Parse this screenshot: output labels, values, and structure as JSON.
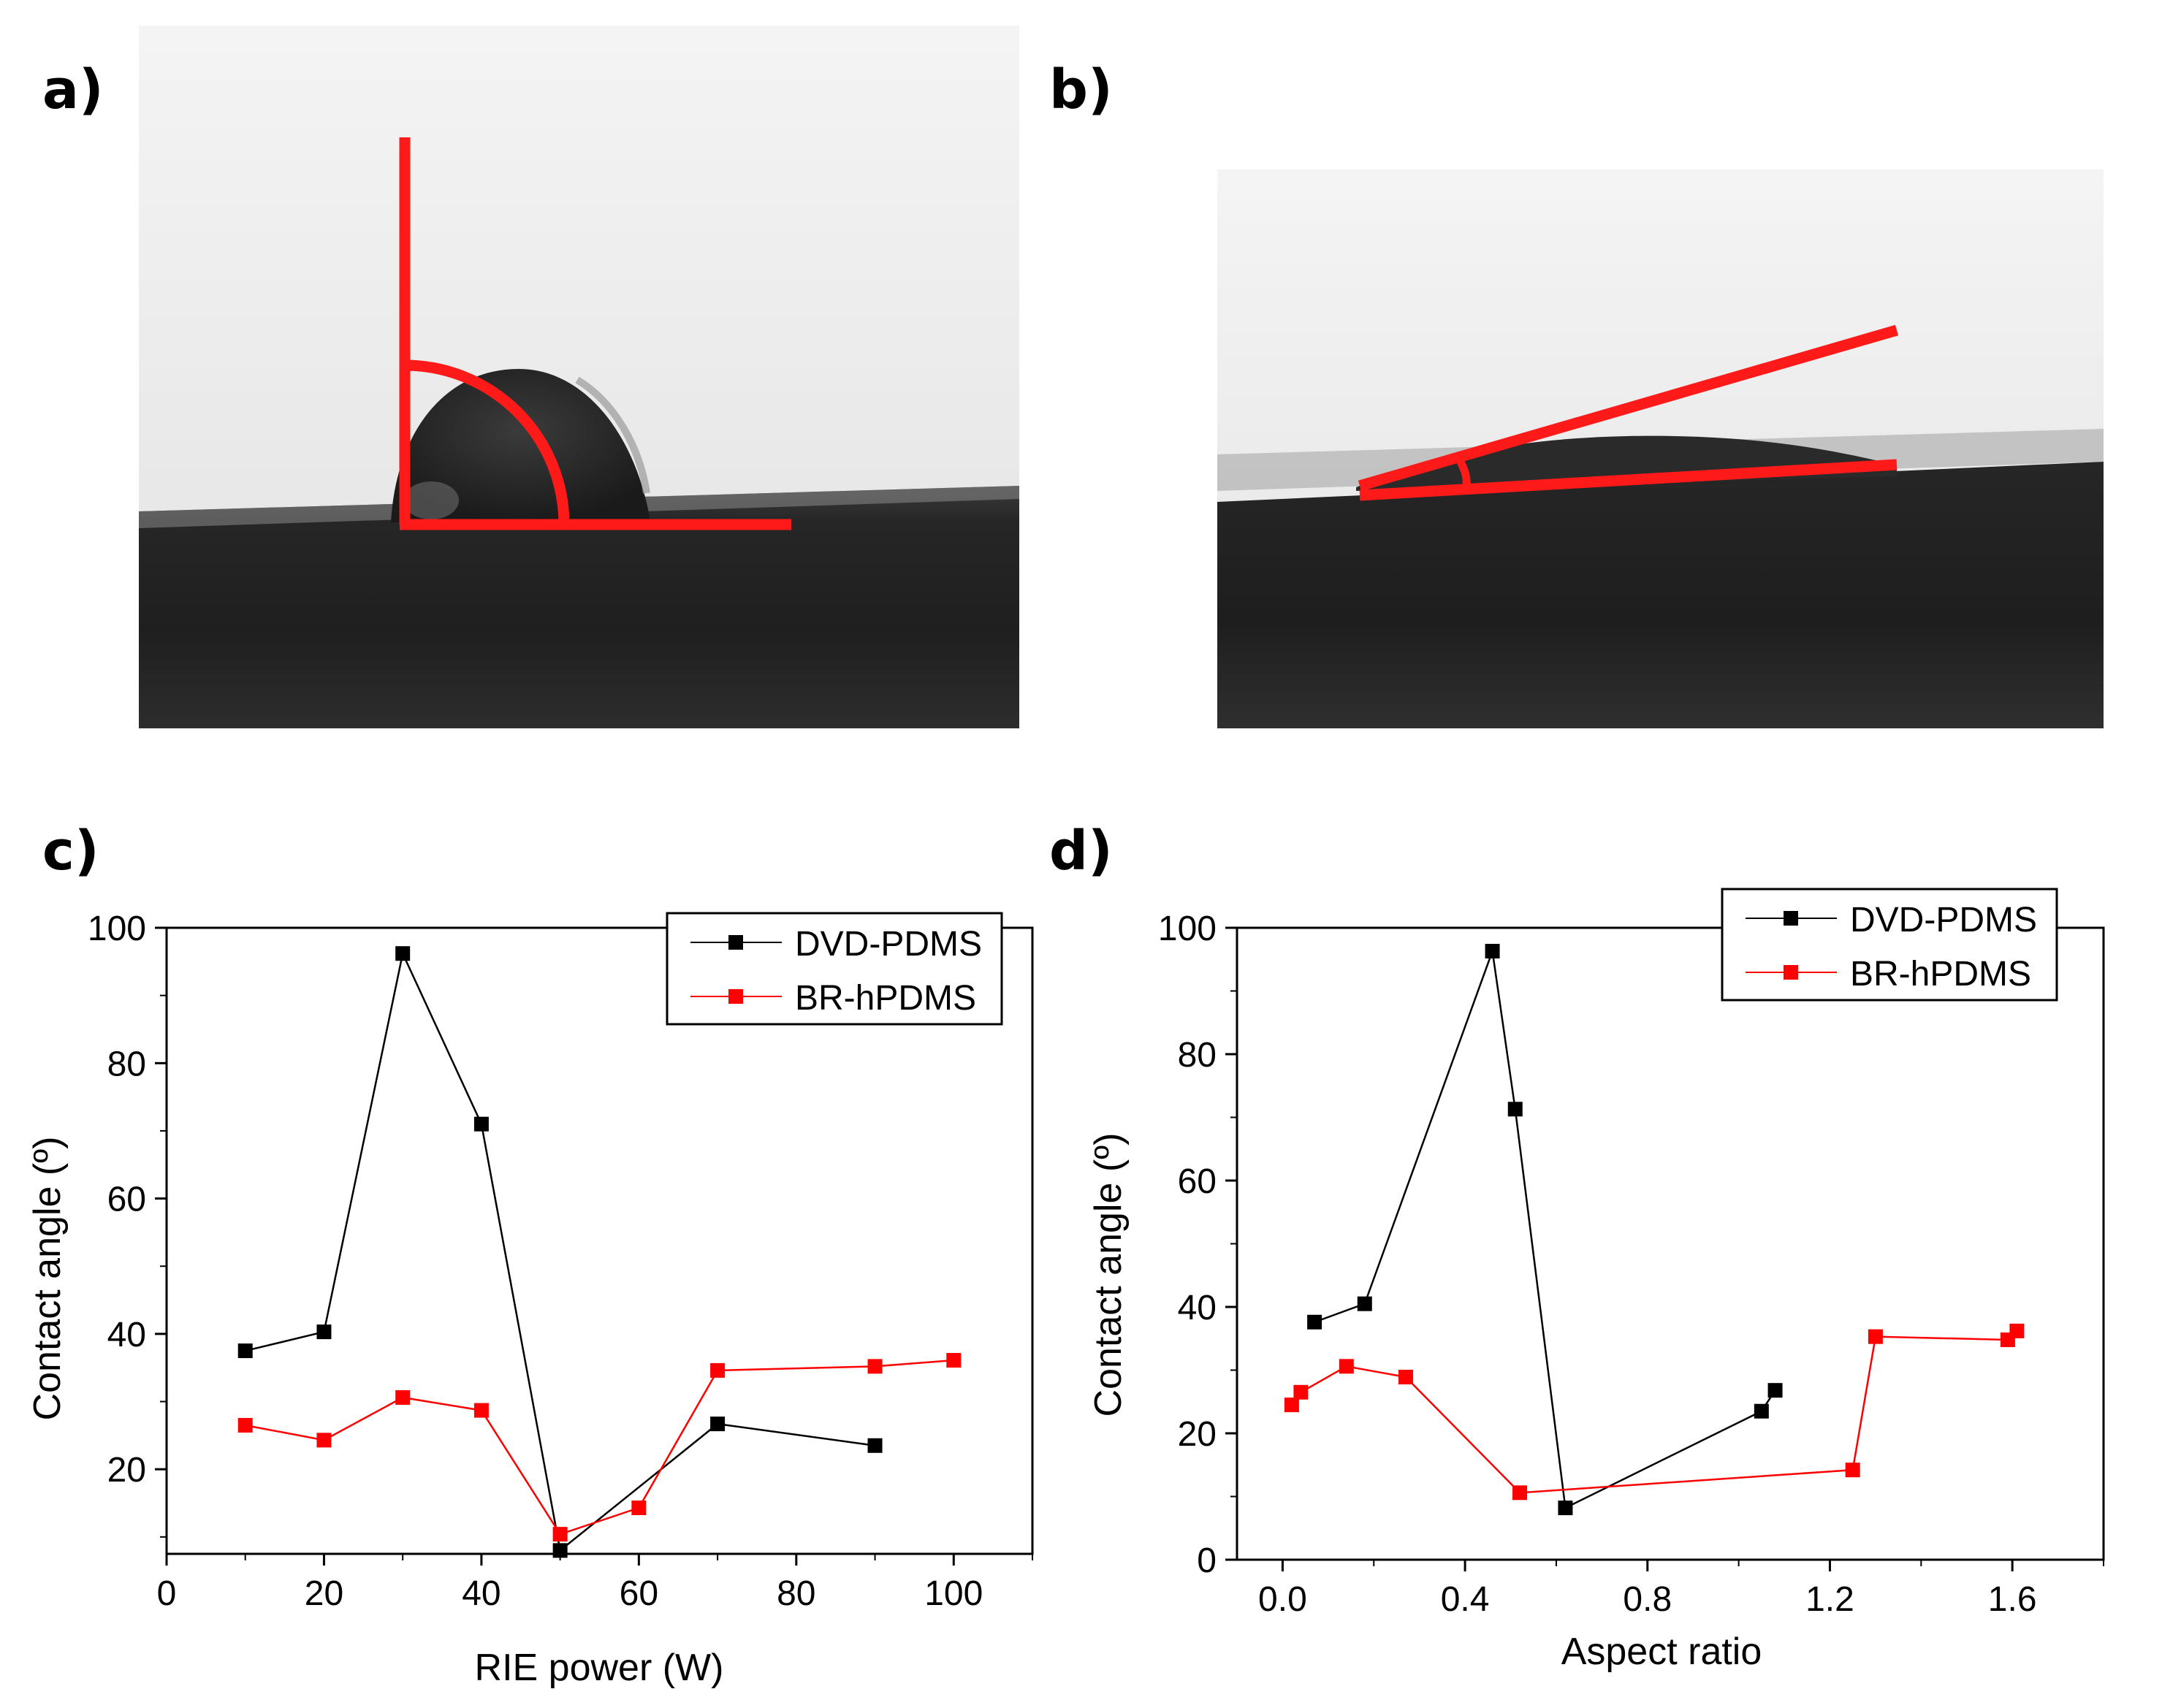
{
  "panel_labels": {
    "a": "a)",
    "b": "b)",
    "c": "c)",
    "d": "d)"
  },
  "colors": {
    "series_black": "#000000",
    "series_red": "#ff0000",
    "annotation_red": "#ff1a1a"
  },
  "chart_data": [
    {
      "id": "c",
      "type": "line",
      "xlabel": "RIE power (W)",
      "ylabel": "Contact angle (º)",
      "xlim": [
        0,
        110
      ],
      "ylim": [
        7.5,
        100
      ],
      "xticks": [
        0,
        20,
        40,
        60,
        80,
        100
      ],
      "xtick_labels": [
        "0",
        "20",
        "40",
        "60",
        "80",
        "100"
      ],
      "yticks": [
        20,
        40,
        60,
        80,
        100
      ],
      "ytick_labels": [
        "20",
        "40",
        "60",
        "80",
        "100"
      ],
      "legend_position": "top-right",
      "series": [
        {
          "name": "DVD-PDMS",
          "color": "#000000",
          "x": [
            10,
            20,
            30,
            40,
            50,
            70,
            90
          ],
          "y": [
            37.5,
            40.3,
            96.2,
            71.0,
            8.0,
            26.7,
            23.5
          ]
        },
        {
          "name": "BR-hPDMS",
          "color": "#ff0000",
          "x": [
            10,
            20,
            30,
            40,
            50,
            60,
            70,
            90,
            100
          ],
          "y": [
            26.5,
            24.3,
            30.6,
            28.7,
            10.4,
            14.3,
            34.6,
            35.2,
            36.1
          ]
        }
      ]
    },
    {
      "id": "d",
      "type": "line",
      "xlabel": "Aspect ratio",
      "ylabel": "Contact angle (º)",
      "xlim": [
        -0.1,
        1.8
      ],
      "ylim": [
        0,
        100
      ],
      "xticks": [
        0.0,
        0.4,
        0.8,
        1.2,
        1.6
      ],
      "xtick_labels": [
        "0.0",
        "0.4",
        "0.8",
        "1.2",
        "1.6"
      ],
      "yticks": [
        0,
        20,
        40,
        60,
        80,
        100
      ],
      "ytick_labels": [
        "0",
        "20",
        "40",
        "60",
        "80",
        "100"
      ],
      "legend_position": "top-right",
      "series": [
        {
          "name": "DVD-PDMS",
          "color": "#000000",
          "x": [
            0.07,
            0.18,
            0.46,
            0.51,
            0.62,
            1.05,
            1.08
          ],
          "y": [
            37.6,
            40.5,
            96.3,
            71.3,
            8.2,
            23.5,
            26.8
          ]
        },
        {
          "name": "BR-hPDMS",
          "color": "#ff0000",
          "x": [
            0.02,
            0.04,
            0.14,
            0.27,
            0.52,
            1.25,
            1.3,
            1.59,
            1.61
          ],
          "y": [
            24.5,
            26.5,
            30.6,
            28.9,
            10.6,
            14.2,
            35.3,
            34.8,
            36.2
          ]
        }
      ]
    }
  ]
}
